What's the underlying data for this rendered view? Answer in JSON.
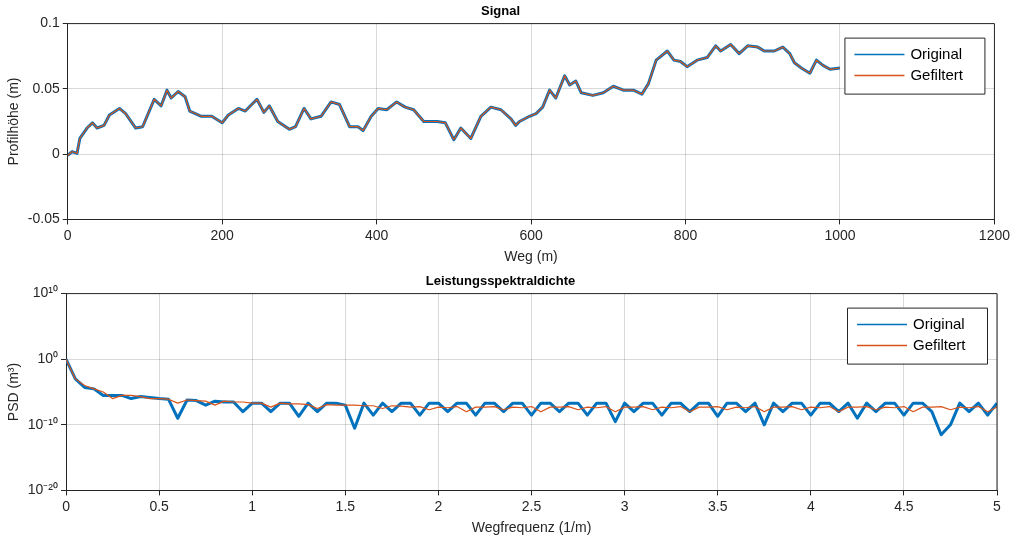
{
  "chart_data": [
    {
      "type": "line",
      "title": "Signal",
      "xlabel": "Weg (m)",
      "ylabel": "Profilhöhe (m)",
      "x": [
        0,
        5.7,
        12,
        15.7,
        25,
        32,
        38,
        47,
        54,
        67,
        75,
        88,
        97,
        112,
        121,
        128.5,
        134,
        143,
        152,
        158,
        173,
        186.5,
        200,
        208,
        221,
        230,
        245,
        254,
        261,
        272,
        287,
        295,
        306,
        315,
        328,
        341,
        352,
        365,
        376,
        382.5,
        393,
        402,
        413,
        426,
        437,
        448,
        461,
        478.5,
        489,
        500,
        509,
        522,
        535,
        548,
        561,
        574,
        580,
        585,
        598,
        606.5,
        615,
        624,
        632,
        643.5,
        650,
        658,
        665,
        680,
        693.5,
        706.5,
        719.5,
        732.5,
        743.5,
        752,
        762,
        776.5,
        785,
        793.5,
        802,
        815,
        828,
        839,
        845.5,
        858.5,
        869.5,
        880.5,
        893.5,
        902,
        915,
        926,
        935,
        941,
        950,
        961,
        969.5,
        978,
        987,
        1000
      ],
      "series": [
        {
          "name": "Original",
          "color": "#0072bd",
          "values": [
            -0.001,
            0.002,
            0.0005,
            0.012,
            0.02,
            0.024,
            0.02,
            0.022,
            0.03,
            0.035,
            0.031,
            0.02,
            0.021,
            0.042,
            0.037,
            0.049,
            0.043,
            0.048,
            0.044,
            0.033,
            0.029,
            0.029,
            0.024,
            0.03,
            0.035,
            0.033,
            0.042,
            0.032,
            0.037,
            0.025,
            0.019,
            0.021,
            0.035,
            0.027,
            0.029,
            0.04,
            0.038,
            0.021,
            0.021,
            0.018,
            0.029,
            0.035,
            0.034,
            0.04,
            0.036,
            0.034,
            0.025,
            0.025,
            0.024,
            0.011,
            0.02,
            0.012,
            0.029,
            0.036,
            0.034,
            0.027,
            0.022,
            0.025,
            0.029,
            0.031,
            0.036,
            0.049,
            0.043,
            0.06,
            0.053,
            0.056,
            0.047,
            0.045,
            0.047,
            0.052,
            0.049,
            0.049,
            0.046,
            0.054,
            0.072,
            0.079,
            0.072,
            0.071,
            0.067,
            0.072,
            0.074,
            0.083,
            0.079,
            0.084,
            0.077,
            0.083,
            0.082,
            0.079,
            0.079,
            0.082,
            0.077,
            0.07,
            0.066,
            0.062,
            0.072,
            0.068,
            0.065,
            0.066
          ]
        },
        {
          "name": "Gefiltert",
          "color": "#d95319",
          "values": [
            -0.001,
            0.002,
            0.0005,
            0.012,
            0.02,
            0.024,
            0.02,
            0.022,
            0.03,
            0.035,
            0.031,
            0.02,
            0.021,
            0.042,
            0.037,
            0.049,
            0.043,
            0.048,
            0.044,
            0.033,
            0.029,
            0.029,
            0.024,
            0.03,
            0.035,
            0.033,
            0.042,
            0.032,
            0.037,
            0.025,
            0.019,
            0.021,
            0.035,
            0.027,
            0.029,
            0.04,
            0.038,
            0.021,
            0.021,
            0.018,
            0.029,
            0.035,
            0.034,
            0.04,
            0.036,
            0.034,
            0.025,
            0.025,
            0.024,
            0.011,
            0.02,
            0.012,
            0.029,
            0.036,
            0.034,
            0.027,
            0.022,
            0.025,
            0.029,
            0.031,
            0.036,
            0.049,
            0.043,
            0.06,
            0.053,
            0.056,
            0.047,
            0.045,
            0.047,
            0.052,
            0.049,
            0.049,
            0.046,
            0.054,
            0.072,
            0.079,
            0.072,
            0.071,
            0.067,
            0.072,
            0.074,
            0.083,
            0.079,
            0.084,
            0.077,
            0.083,
            0.082,
            0.079,
            0.079,
            0.082,
            0.077,
            0.07,
            0.066,
            0.062,
            0.072,
            0.068,
            0.065,
            0.066
          ]
        }
      ],
      "xlim": [
        0,
        1200
      ],
      "xticks": [
        0,
        200,
        400,
        600,
        800,
        1000,
        1200
      ],
      "ylim": [
        -0.05,
        0.1
      ],
      "yticks": [
        -0.05,
        0,
        0.05,
        0.1
      ],
      "grid": true,
      "legend": "top right",
      "marker": "none",
      "line_style": "solid"
    },
    {
      "type": "line",
      "title": "Leistungsspektraldichte",
      "xlabel": "Wegfrequenz (1/m)",
      "ylabel": "PSD (m³)",
      "x": [
        0,
        0.05,
        0.1,
        0.15,
        0.2,
        0.25,
        0.3,
        0.35,
        0.4,
        0.45,
        0.5,
        0.55,
        0.6,
        0.65,
        0.7,
        0.75,
        0.8,
        0.85,
        0.9,
        0.95,
        1,
        1.05,
        1.1,
        1.15,
        1.2,
        1.25,
        1.3,
        1.35,
        1.4,
        1.45,
        1.5,
        1.55,
        1.6,
        1.65,
        1.7,
        1.75,
        1.8,
        1.85,
        1.9,
        1.95,
        2,
        2.05,
        2.1,
        2.15,
        2.2,
        2.25,
        2.3,
        2.35,
        2.4,
        2.45,
        2.5,
        2.55,
        2.6,
        2.65,
        2.7,
        2.75,
        2.8,
        2.85,
        2.9,
        2.95,
        3,
        3.05,
        3.1,
        3.15,
        3.2,
        3.25,
        3.3,
        3.35,
        3.4,
        3.45,
        3.5,
        3.55,
        3.6,
        3.65,
        3.7,
        3.75,
        3.8,
        3.85,
        3.9,
        3.95,
        4,
        4.05,
        4.1,
        4.15,
        4.2,
        4.25,
        4.3,
        4.35,
        4.4,
        4.45,
        4.5,
        4.55,
        4.6,
        4.65,
        4.7,
        4.75,
        4.8,
        4.85,
        4.9,
        4.95,
        5
      ],
      "series": [
        {
          "name": "Original",
          "color": "#0072bd",
          "values": [
            1,
            0.001,
            5e-05,
            3e-05,
            3e-06,
            3e-06,
            3e-06,
            1e-06,
            2e-06,
            1.5e-06,
            1e-06,
            8e-07,
            1e-09,
            6e-07,
            5e-07,
            1e-07,
            4e-07,
            3e-07,
            3e-07,
            1e-08,
            2e-07,
            2e-07,
            1e-08,
            2e-07,
            2e-07,
            2e-09,
            2e-07,
            1e-08,
            2e-07,
            2e-07,
            1e-07,
            3e-11,
            2e-07,
            3e-09,
            2e-07,
            1e-08,
            2e-07,
            2e-07,
            3e-09,
            2e-07,
            2e-07,
            1e-08,
            2e-07,
            2e-07,
            3e-09,
            2e-07,
            2e-07,
            1e-08,
            2e-07,
            2e-07,
            3e-09,
            2e-07,
            2e-07,
            1e-08,
            2e-07,
            2e-07,
            3e-09,
            2e-07,
            2e-07,
            3e-10,
            2e-07,
            1e-08,
            2e-07,
            2e-07,
            3e-09,
            2e-07,
            2e-07,
            1e-08,
            2e-07,
            2e-07,
            2e-09,
            2e-07,
            2e-07,
            1e-08,
            2e-07,
            1e-10,
            2e-07,
            1e-08,
            2e-07,
            2e-07,
            3e-09,
            2e-07,
            2e-07,
            1e-08,
            2e-07,
            1e-09,
            2e-07,
            1e-08,
            2e-07,
            2e-07,
            3e-09,
            2e-07,
            2e-07,
            1e-08,
            3e-12,
            1e-10,
            2e-07,
            1e-08,
            2e-07,
            3e-09,
            2e-07
          ]
        },
        {
          "name": "Gefiltert",
          "color": "#d95319",
          "values": [
            1,
            0.001,
            0.0001,
            3e-05,
            1e-05,
            1e-06,
            3e-06,
            3e-06,
            2e-06,
            1e-06,
            1e-06,
            8e-07,
            2e-07,
            6e-07,
            5e-07,
            4e-07,
            1e-07,
            4e-07,
            3e-07,
            3e-07,
            2e-07,
            2e-07,
            5e-08,
            2e-07,
            1.5e-07,
            1.5e-07,
            1.2e-07,
            3e-08,
            1.2e-07,
            1e-07,
            1e-07,
            1e-07,
            8e-08,
            8e-08,
            3e-08,
            8e-08,
            7e-08,
            5e-08,
            6e-08,
            2e-08,
            5e-08,
            4e-08,
            6e-08,
            1e-08,
            5e-08,
            5e-08,
            6e-08,
            2e-08,
            5e-08,
            4e-08,
            6e-08,
            1e-08,
            5e-08,
            5e-08,
            6e-08,
            2e-08,
            5e-08,
            4e-08,
            6e-08,
            1e-08,
            5e-08,
            5e-08,
            6e-08,
            2e-08,
            5e-08,
            4e-08,
            6e-08,
            1e-08,
            5e-08,
            5e-08,
            6e-08,
            2e-08,
            5e-08,
            4e-08,
            6e-08,
            1e-08,
            5e-08,
            5e-08,
            6e-08,
            2e-08,
            5e-08,
            4e-08,
            6e-08,
            1e-08,
            5e-08,
            5e-08,
            6e-08,
            2e-08,
            5e-08,
            4e-08,
            6e-08,
            1e-08,
            5e-08,
            5e-08,
            6e-08,
            2e-08,
            5e-08,
            4e-08,
            6e-08,
            1e-08,
            5e-08
          ]
        }
      ],
      "xlim": [
        0,
        5
      ],
      "xticks": [
        0,
        0.5,
        1,
        1.5,
        2,
        2.5,
        3,
        3.5,
        4,
        4.5,
        5
      ],
      "ylim": [
        1e-20,
        10000000000.0
      ],
      "yticks": [
        {
          "value": 1e-20,
          "label": "10⁻²⁰"
        },
        {
          "value": 1e-10,
          "label": "10⁻¹⁰"
        },
        {
          "value": 1,
          "label": "10⁰"
        },
        {
          "value": 10000000000.0,
          "label": "10¹⁰"
        }
      ],
      "log": true,
      "grid": true,
      "legend": "top right",
      "marker": "none",
      "line_style": "solid"
    }
  ]
}
